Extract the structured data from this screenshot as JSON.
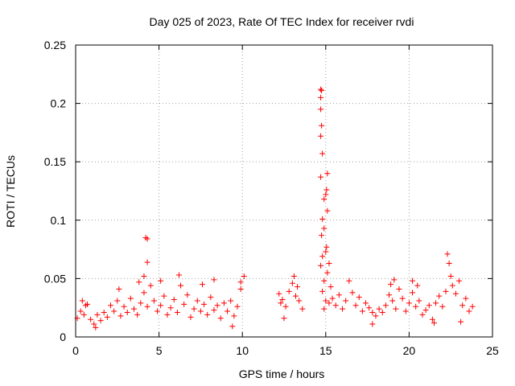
{
  "chart_data": {
    "type": "scatter",
    "title": "Day 025 of 2023, Rate Of TEC Index for receiver rvdi",
    "xlabel": "GPS time / hours",
    "ylabel": "ROTI / TECUs",
    "xlim": [
      0,
      25
    ],
    "ylim": [
      0,
      0.25
    ],
    "x_ticks": [
      0,
      5,
      10,
      15,
      20,
      25
    ],
    "x_tick_labels": [
      "0",
      "5",
      "10",
      "15",
      "20",
      "25"
    ],
    "y_ticks": [
      0,
      0.05,
      0.1,
      0.15,
      0.2,
      0.25
    ],
    "y_tick_labels": [
      "0",
      "0.05",
      "0.1",
      "0.15",
      "0.2",
      "0.25"
    ],
    "grid": true,
    "marker": "+",
    "series": [
      {
        "name": "ROTI",
        "color": "#ff0000",
        "points": [
          [
            0.1,
            0.016
          ],
          [
            0.3,
            0.022
          ],
          [
            0.5,
            0.019
          ],
          [
            0.7,
            0.028
          ],
          [
            0.9,
            0.015
          ],
          [
            1.1,
            0.011
          ],
          [
            1.3,
            0.019
          ],
          [
            1.5,
            0.014
          ],
          [
            1.7,
            0.021
          ],
          [
            1.9,
            0.017
          ],
          [
            2.1,
            0.027
          ],
          [
            2.3,
            0.022
          ],
          [
            2.5,
            0.031
          ],
          [
            2.7,
            0.018
          ],
          [
            2.9,
            0.026
          ],
          [
            3.1,
            0.021
          ],
          [
            3.3,
            0.033
          ],
          [
            3.5,
            0.024
          ],
          [
            3.7,
            0.019
          ],
          [
            3.9,
            0.029
          ],
          [
            4.1,
            0.038
          ],
          [
            4.3,
            0.026
          ],
          [
            4.5,
            0.044
          ],
          [
            4.7,
            0.031
          ],
          [
            4.9,
            0.022
          ],
          [
            5.1,
            0.027
          ],
          [
            5.3,
            0.035
          ],
          [
            5.5,
            0.019
          ],
          [
            5.7,
            0.025
          ],
          [
            5.9,
            0.032
          ],
          [
            6.1,
            0.021
          ],
          [
            6.3,
            0.044
          ],
          [
            6.5,
            0.028
          ],
          [
            6.7,
            0.036
          ],
          [
            6.9,
            0.017
          ],
          [
            7.1,
            0.024
          ],
          [
            7.3,
            0.031
          ],
          [
            7.5,
            0.022
          ],
          [
            7.7,
            0.028
          ],
          [
            7.9,
            0.019
          ],
          [
            8.1,
            0.034
          ],
          [
            8.3,
            0.023
          ],
          [
            8.5,
            0.027
          ],
          [
            8.7,
            0.016
          ],
          [
            8.9,
            0.029
          ],
          [
            9.1,
            0.022
          ],
          [
            9.3,
            0.031
          ],
          [
            9.5,
            0.018
          ],
          [
            9.7,
            0.026
          ],
          [
            9.9,
            0.041
          ],
          [
            4.2,
            0.085
          ],
          [
            4.3,
            0.084
          ],
          [
            4.3,
            0.064
          ],
          [
            4.1,
            0.052
          ],
          [
            3.8,
            0.047
          ],
          [
            5.1,
            0.048
          ],
          [
            6.2,
            0.053
          ],
          [
            7.6,
            0.045
          ],
          [
            8.3,
            0.049
          ],
          [
            9.9,
            0.047
          ],
          [
            10.1,
            0.052
          ],
          [
            0.4,
            0.031
          ],
          [
            0.6,
            0.027
          ],
          [
            1.2,
            0.008
          ],
          [
            2.6,
            0.041
          ],
          [
            9.4,
            0.009
          ],
          [
            12.2,
            0.037
          ],
          [
            12.4,
            0.032
          ],
          [
            12.6,
            0.026
          ],
          [
            12.8,
            0.039
          ],
          [
            13.0,
            0.046
          ],
          [
            13.2,
            0.035
          ],
          [
            13.4,
            0.031
          ],
          [
            13.6,
            0.024
          ],
          [
            12.5,
            0.016
          ],
          [
            13.1,
            0.052
          ],
          [
            12.3,
            0.029
          ],
          [
            13.3,
            0.043
          ],
          [
            14.7,
            0.212
          ],
          [
            14.75,
            0.211
          ],
          [
            14.7,
            0.205
          ],
          [
            14.7,
            0.195
          ],
          [
            14.75,
            0.181
          ],
          [
            14.7,
            0.172
          ],
          [
            14.8,
            0.157
          ],
          [
            14.7,
            0.137
          ],
          [
            15.1,
            0.14
          ],
          [
            15.05,
            0.126
          ],
          [
            15.0,
            0.122
          ],
          [
            14.9,
            0.118
          ],
          [
            15.1,
            0.108
          ],
          [
            14.8,
            0.101
          ],
          [
            14.9,
            0.093
          ],
          [
            14.75,
            0.087
          ],
          [
            15.05,
            0.077
          ],
          [
            15.0,
            0.073
          ],
          [
            14.8,
            0.069
          ],
          [
            15.2,
            0.063
          ],
          [
            14.7,
            0.061
          ],
          [
            15.1,
            0.055
          ],
          [
            14.9,
            0.048
          ],
          [
            15.3,
            0.043
          ],
          [
            14.8,
            0.039
          ],
          [
            15.0,
            0.031
          ],
          [
            14.9,
            0.024
          ],
          [
            15.2,
            0.029
          ],
          [
            15.4,
            0.033
          ],
          [
            15.6,
            0.027
          ],
          [
            15.8,
            0.036
          ],
          [
            16.0,
            0.024
          ],
          [
            16.2,
            0.031
          ],
          [
            16.4,
            0.048
          ],
          [
            16.6,
            0.038
          ],
          [
            16.8,
            0.027
          ],
          [
            17.0,
            0.034
          ],
          [
            17.2,
            0.022
          ],
          [
            17.4,
            0.029
          ],
          [
            17.6,
            0.025
          ],
          [
            17.8,
            0.021
          ],
          [
            18.0,
            0.018
          ],
          [
            18.2,
            0.024
          ],
          [
            18.4,
            0.021
          ],
          [
            18.6,
            0.027
          ],
          [
            18.8,
            0.036
          ],
          [
            19.0,
            0.031
          ],
          [
            19.2,
            0.024
          ],
          [
            19.4,
            0.041
          ],
          [
            19.6,
            0.033
          ],
          [
            19.8,
            0.022
          ],
          [
            20.0,
            0.029
          ],
          [
            20.2,
            0.038
          ],
          [
            20.4,
            0.026
          ],
          [
            20.6,
            0.031
          ],
          [
            20.8,
            0.019
          ],
          [
            21.0,
            0.023
          ],
          [
            21.2,
            0.027
          ],
          [
            21.4,
            0.015
          ],
          [
            21.6,
            0.029
          ],
          [
            21.8,
            0.035
          ],
          [
            22.0,
            0.026
          ],
          [
            22.2,
            0.039
          ],
          [
            22.3,
            0.071
          ],
          [
            22.4,
            0.063
          ],
          [
            22.5,
            0.052
          ],
          [
            22.6,
            0.044
          ],
          [
            22.8,
            0.037
          ],
          [
            23.0,
            0.048
          ],
          [
            23.2,
            0.027
          ],
          [
            23.4,
            0.033
          ],
          [
            23.6,
            0.022
          ],
          [
            23.8,
            0.026
          ],
          [
            17.8,
            0.011
          ],
          [
            18.9,
            0.045
          ],
          [
            19.1,
            0.049
          ],
          [
            20.2,
            0.048
          ],
          [
            21.5,
            0.012
          ],
          [
            23.1,
            0.013
          ],
          [
            20.5,
            0.044
          ]
        ]
      }
    ]
  }
}
